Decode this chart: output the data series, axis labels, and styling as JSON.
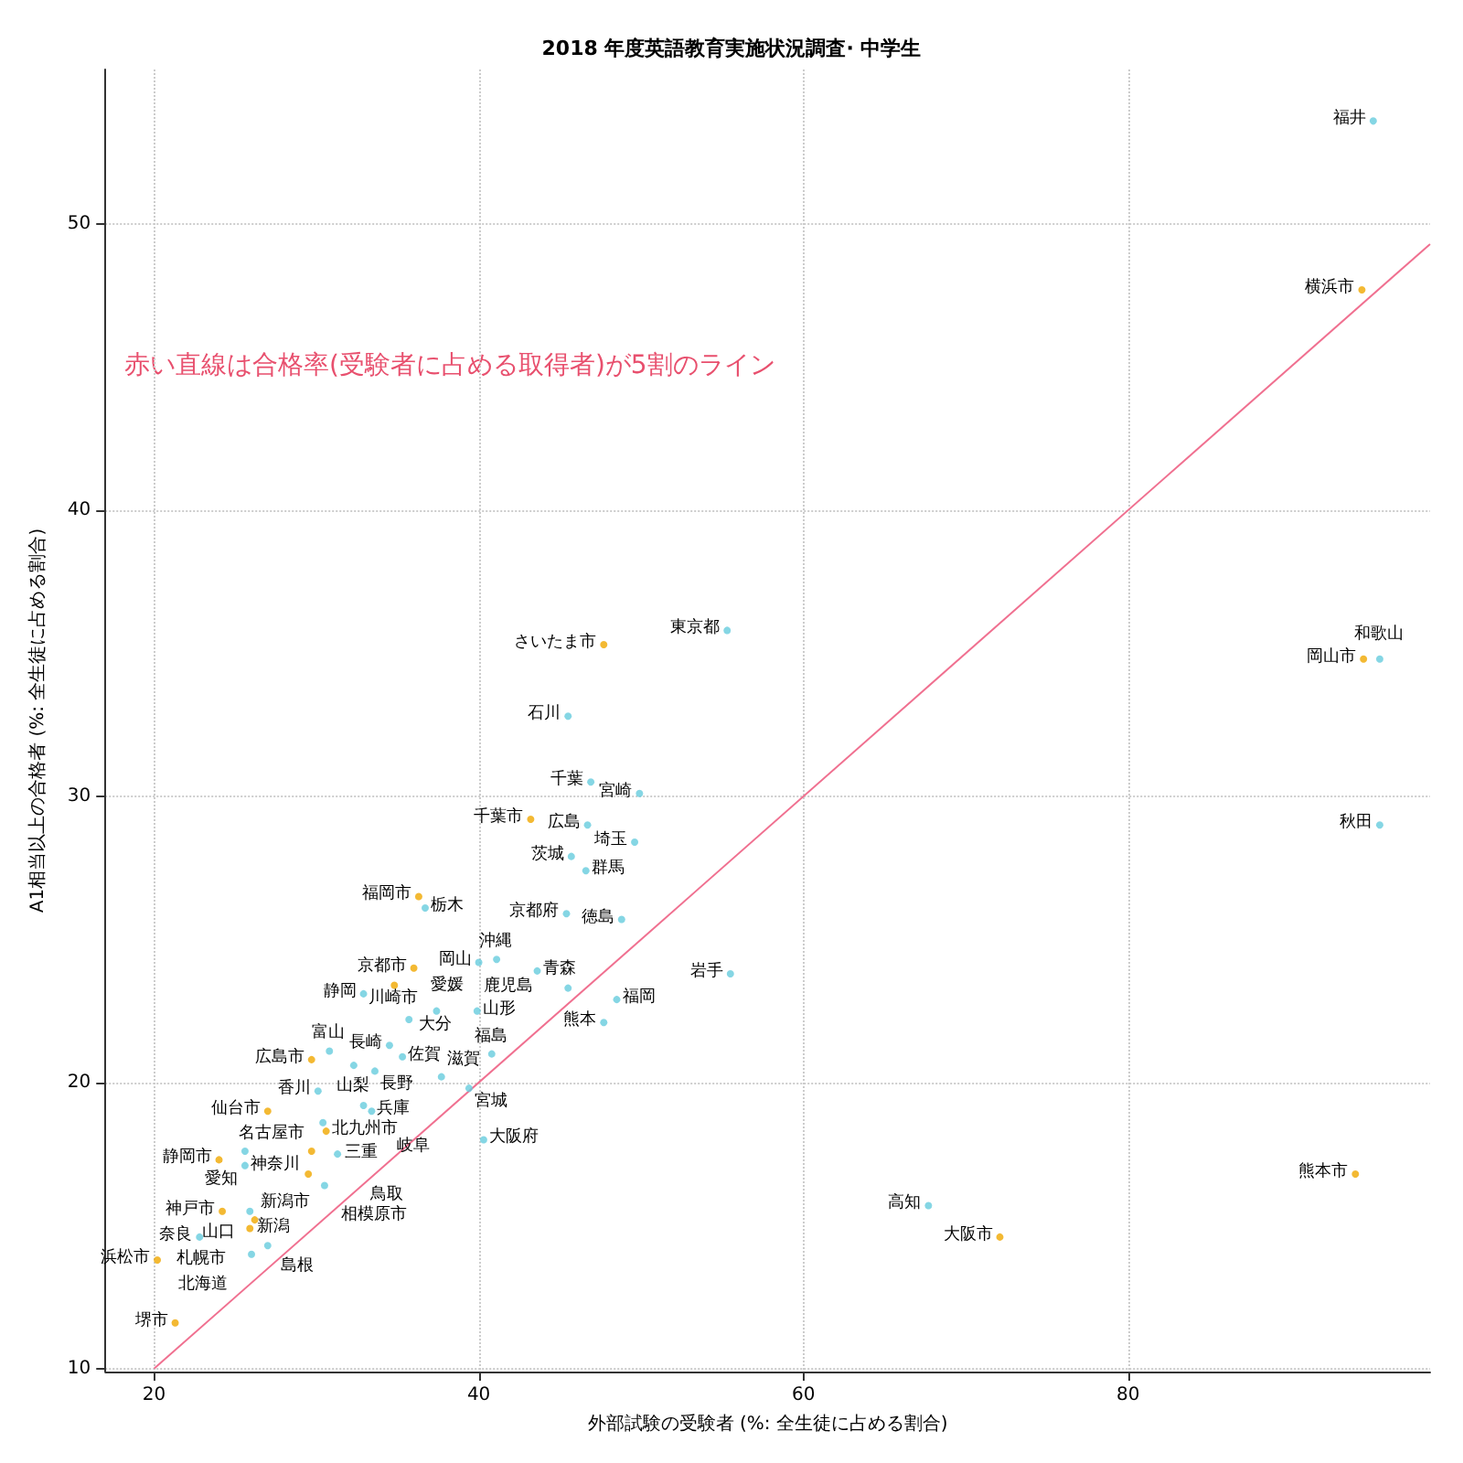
{
  "chart_data": {
    "type": "scatter",
    "title": "2018 年度英語教育実施状況調査· 中学生",
    "xlabel": "外部試験の受験者 (%: 全生徒に占める割合)",
    "ylabel": "A1相当以上の合格者 (%: 全生徒に占める割合)",
    "xlim": [
      17,
      98.6
    ],
    "ylim": [
      9.9,
      55.4
    ],
    "xticks": [
      20,
      40,
      60,
      80
    ],
    "yticks": [
      10,
      20,
      30,
      40,
      50
    ],
    "grid": true,
    "marker": "circle",
    "series": [
      {
        "color": "#f0a800",
        "x": [
          29.7,
          27.0,
          24.0,
          29.7,
          24.2,
          26.2,
          25.9,
          20.2,
          21.3,
          30.6,
          29.5,
          36.3,
          36.0,
          34.8,
          47.7,
          43.2,
          72.1,
          94.0,
          94.4,
          94.5
        ],
        "values": [
          20.8,
          19.0,
          17.3,
          17.6,
          15.5,
          15.2,
          14.9,
          13.8,
          11.6,
          18.3,
          16.8,
          26.5,
          24.0,
          23.4,
          35.3,
          29.2,
          14.6,
          16.8,
          47.7,
          34.8
        ]
      },
      {
        "color": "#66ccdd",
        "x": [
          30.8,
          32.3,
          34.5,
          35.3,
          33.6,
          30.1,
          32.9,
          33.4,
          25.6,
          30.4,
          25.6,
          31.3,
          30.5,
          25.9,
          22.8,
          26.0,
          27.0,
          37.7,
          39.4,
          40.3,
          40.8,
          39.9,
          37.4,
          35.7,
          41.1,
          40.0,
          32.9,
          36.7,
          43.6,
          45.5,
          47.7,
          48.5,
          55.5,
          48.8,
          45.4,
          46.6,
          45.7,
          49.6,
          46.7,
          49.9,
          46.9,
          45.5,
          55.3,
          67.7,
          95.1,
          95.5,
          95.5
        ],
        "values": [
          21.1,
          20.6,
          21.3,
          20.9,
          20.4,
          19.7,
          19.2,
          19.0,
          17.6,
          18.6,
          17.1,
          17.5,
          16.4,
          15.5,
          14.6,
          14.0,
          14.3,
          20.2,
          19.8,
          18.0,
          21.0,
          22.5,
          22.5,
          22.2,
          24.3,
          24.2,
          23.1,
          26.1,
          23.9,
          23.3,
          22.1,
          22.9,
          23.8,
          25.7,
          25.9,
          27.4,
          27.9,
          28.4,
          29.0,
          30.1,
          30.5,
          32.8,
          35.8,
          15.7,
          53.6,
          34.8,
          29.0
        ]
      },
      {
        "type": "line",
        "marker": "none",
        "color": "#f07090",
        "x": [
          20,
          98.6
        ],
        "values": [
          10,
          49.3
        ]
      }
    ],
    "annotations": [
      "赤い直線は合格率(受験者に占める取得者)が5割のライン",
      {
        "text": "広島市",
        "x": 29.7,
        "y": 20.8
      },
      {
        "text": "仙台市",
        "x": 27.0,
        "y": 19.0
      },
      {
        "text": "静岡市",
        "x": 24.0,
        "y": 17.3
      },
      {
        "text": "名古屋市",
        "x": 29.7,
        "y": 17.6
      },
      {
        "text": "神戸市",
        "x": 24.2,
        "y": 15.5
      },
      {
        "text": "新潟市",
        "x": 26.2,
        "y": 15.2
      },
      {
        "text": "札幌市",
        "x": 25.9,
        "y": 14.9
      },
      {
        "text": "浜松市",
        "x": 20.2,
        "y": 13.8
      },
      {
        "text": "堺市",
        "x": 21.3,
        "y": 11.6
      },
      {
        "text": "北九州市",
        "x": 30.6,
        "y": 18.3
      },
      {
        "text": "相模原市",
        "x": 29.5,
        "y": 16.8
      },
      {
        "text": "福岡市",
        "x": 36.3,
        "y": 26.5
      },
      {
        "text": "京都市",
        "x": 36.0,
        "y": 24.0
      },
      {
        "text": "川崎市",
        "x": 34.8,
        "y": 23.4
      },
      {
        "text": "さいたま市",
        "x": 47.7,
        "y": 35.3
      },
      {
        "text": "千葉市",
        "x": 43.2,
        "y": 29.2
      },
      {
        "text": "大阪市",
        "x": 72.1,
        "y": 14.6
      },
      {
        "text": "熊本市",
        "x": 94.0,
        "y": 16.8
      },
      {
        "text": "横浜市",
        "x": 94.4,
        "y": 47.7
      },
      {
        "text": "岡山市",
        "x": 94.5,
        "y": 34.8
      },
      {
        "text": "富山",
        "x": 30.8,
        "y": 21.1
      },
      {
        "text": "山梨",
        "x": 32.3,
        "y": 20.6
      },
      {
        "text": "長崎",
        "x": 34.5,
        "y": 21.3
      },
      {
        "text": "佐賀",
        "x": 35.3,
        "y": 20.9
      },
      {
        "text": "長野",
        "x": 33.6,
        "y": 20.4
      },
      {
        "text": "香川",
        "x": 30.1,
        "y": 19.7
      },
      {
        "text": "岐阜",
        "x": 32.9,
        "y": 19.2
      },
      {
        "text": "兵庫",
        "x": 33.4,
        "y": 19.0
      },
      {
        "text": "神奈川",
        "x": 25.6,
        "y": 17.6
      },
      {
        "text": "三重",
        "x": 30.4,
        "y": 18.6
      },
      {
        "text": "愛知",
        "x": 25.6,
        "y": 17.1
      },
      {
        "text": "鳥取",
        "x": 31.3,
        "y": 17.5
      },
      {
        "text": "新潟",
        "x": 30.5,
        "y": 16.4
      },
      {
        "text": "山口",
        "x": 25.9,
        "y": 15.5
      },
      {
        "text": "奈良",
        "x": 22.8,
        "y": 14.6
      },
      {
        "text": "北海道",
        "x": 26.0,
        "y": 14.0
      },
      {
        "text": "島根",
        "x": 27.0,
        "y": 14.3
      },
      {
        "text": "滋賀",
        "x": 37.7,
        "y": 20.2
      },
      {
        "text": "宮城",
        "x": 39.4,
        "y": 19.8
      },
      {
        "text": "大阪府",
        "x": 40.3,
        "y": 18.0
      },
      {
        "text": "福島",
        "x": 40.8,
        "y": 21.0
      },
      {
        "text": "山形",
        "x": 39.9,
        "y": 22.5
      },
      {
        "text": "大分",
        "x": 37.4,
        "y": 22.5
      },
      {
        "text": "愛媛",
        "x": 35.7,
        "y": 22.2
      },
      {
        "text": "沖縄",
        "x": 41.1,
        "y": 24.3
      },
      {
        "text": "岡山",
        "x": 40.0,
        "y": 24.2
      },
      {
        "text": "静岡",
        "x": 32.9,
        "y": 23.1
      },
      {
        "text": "栃木",
        "x": 36.7,
        "y": 26.1
      },
      {
        "text": "青森",
        "x": 43.6,
        "y": 23.9
      },
      {
        "text": "鹿児島",
        "x": 45.5,
        "y": 23.3
      },
      {
        "text": "熊本",
        "x": 47.7,
        "y": 22.1
      },
      {
        "text": "福岡",
        "x": 48.5,
        "y": 22.9
      },
      {
        "text": "岩手",
        "x": 55.5,
        "y": 23.8
      },
      {
        "text": "徳島",
        "x": 48.8,
        "y": 25.7
      },
      {
        "text": "京都府",
        "x": 45.4,
        "y": 25.9
      },
      {
        "text": "群馬",
        "x": 46.6,
        "y": 27.4
      },
      {
        "text": "茨城",
        "x": 45.7,
        "y": 27.9
      },
      {
        "text": "埼玉",
        "x": 49.6,
        "y": 28.4
      },
      {
        "text": "広島",
        "x": 46.7,
        "y": 29.0
      },
      {
        "text": "宮崎",
        "x": 49.9,
        "y": 30.1
      },
      {
        "text": "千葉",
        "x": 46.9,
        "y": 30.5
      },
      {
        "text": "石川",
        "x": 45.5,
        "y": 32.8
      },
      {
        "text": "東京都",
        "x": 55.3,
        "y": 35.8
      },
      {
        "text": "高知",
        "x": 67.7,
        "y": 15.7
      },
      {
        "text": "福井",
        "x": 95.1,
        "y": 53.6
      },
      {
        "text": "和歌山",
        "x": 95.5,
        "y": 34.8
      },
      {
        "text": "秋田",
        "x": 95.5,
        "y": 29.0
      }
    ]
  }
}
